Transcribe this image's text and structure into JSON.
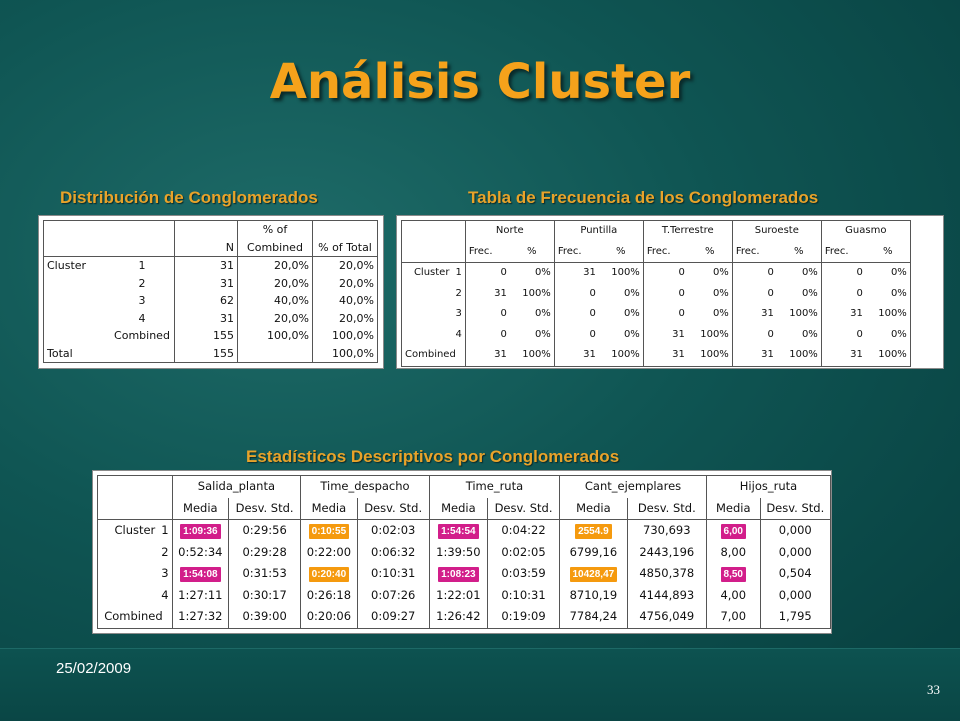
{
  "title": "Análisis Cluster",
  "sections": {
    "distribucion_title": "Distribución de Conglomerados",
    "frecuencia_title": "Tabla de Frecuencia de los Conglomerados",
    "estadisticos_title": "Estadísticos Descriptivos por Conglomerados"
  },
  "distribucion": {
    "headers": [
      "N",
      "% of Combined",
      "% of Total"
    ],
    "header_combined_l1": "% of",
    "header_combined_l2": "Combined",
    "rows": [
      {
        "group": "Cluster",
        "label": "1",
        "n": "31",
        "pc": "20,0%",
        "pt": "20,0%"
      },
      {
        "group": "",
        "label": "2",
        "n": "31",
        "pc": "20,0%",
        "pt": "20,0%"
      },
      {
        "group": "",
        "label": "3",
        "n": "62",
        "pc": "40,0%",
        "pt": "40,0%"
      },
      {
        "group": "",
        "label": "4",
        "n": "31",
        "pc": "20,0%",
        "pt": "20,0%"
      },
      {
        "group": "",
        "label": "Combined",
        "n": "155",
        "pc": "100,0%",
        "pt": "100,0%"
      },
      {
        "group": "Total",
        "label": "",
        "n": "155",
        "pc": "",
        "pt": "100,0%"
      }
    ]
  },
  "frecuencia": {
    "zones": [
      "Norte",
      "Puntilla",
      "T.Terrestre",
      "Suroeste",
      "Guasmo"
    ],
    "sub": [
      "Frec.",
      "%"
    ],
    "rows": [
      {
        "label": "Cluster",
        "num": "1",
        "vals": [
          "0",
          "0%",
          "31",
          "100%",
          "0",
          "0%",
          "0",
          "0%",
          "0",
          "0%"
        ]
      },
      {
        "label": "",
        "num": "2",
        "vals": [
          "31",
          "100%",
          "0",
          "0%",
          "0",
          "0%",
          "0",
          "0%",
          "0",
          "0%"
        ]
      },
      {
        "label": "",
        "num": "3",
        "vals": [
          "0",
          "0%",
          "0",
          "0%",
          "0",
          "0%",
          "31",
          "100%",
          "31",
          "100%"
        ]
      },
      {
        "label": "",
        "num": "4",
        "vals": [
          "0",
          "0%",
          "0",
          "0%",
          "31",
          "100%",
          "0",
          "0%",
          "0",
          "0%"
        ]
      },
      {
        "label": "Combined",
        "num": "",
        "vals": [
          "31",
          "100%",
          "31",
          "100%",
          "31",
          "100%",
          "31",
          "100%",
          "31",
          "100%"
        ]
      }
    ]
  },
  "estadisticos": {
    "vars": [
      "Salida_planta",
      "Time_despacho",
      "Time_ruta",
      "Cant_ejemplares",
      "Hijos_ruta"
    ],
    "sub": [
      "Media",
      "Desv. Std."
    ],
    "rows": [
      {
        "label": "Cluster",
        "num": "1",
        "vals": [
          "1:09:36",
          "0:29:56",
          "0:10:55",
          "0:02:03",
          "1:54:54",
          "0:04:22",
          "2554.9",
          "730,693",
          "6,00",
          "0,000"
        ]
      },
      {
        "label": "",
        "num": "2",
        "vals": [
          "0:52:34",
          "0:29:28",
          "0:22:00",
          "0:06:32",
          "1:39:50",
          "0:02:05",
          "6799,16",
          "2443,196",
          "8,00",
          "0,000"
        ]
      },
      {
        "label": "",
        "num": "3",
        "vals": [
          "1:54:08",
          "0:31:53",
          "0:20:40",
          "0:10:31",
          "1:08:23",
          "0:03:59",
          "10428,47",
          "4850,378",
          "8,50",
          "0,504"
        ]
      },
      {
        "label": "",
        "num": "4",
        "vals": [
          "1:27:11",
          "0:30:17",
          "0:26:18",
          "0:07:26",
          "1:22:01",
          "0:10:31",
          "8710,19",
          "4144,893",
          "4,00",
          "0,000"
        ]
      },
      {
        "label": "Combined",
        "num": "",
        "vals": [
          "1:27:32",
          "0:39:00",
          "0:20:06",
          "0:09:27",
          "1:26:42",
          "0:19:09",
          "7784,24",
          "4756,049",
          "7,00",
          "1,795"
        ]
      }
    ],
    "highlight_colors": {
      "pink": "#d21e8a",
      "orange": "#f59a0e"
    }
  },
  "footer": {
    "date": "25/02/2009",
    "page_number": "33"
  }
}
